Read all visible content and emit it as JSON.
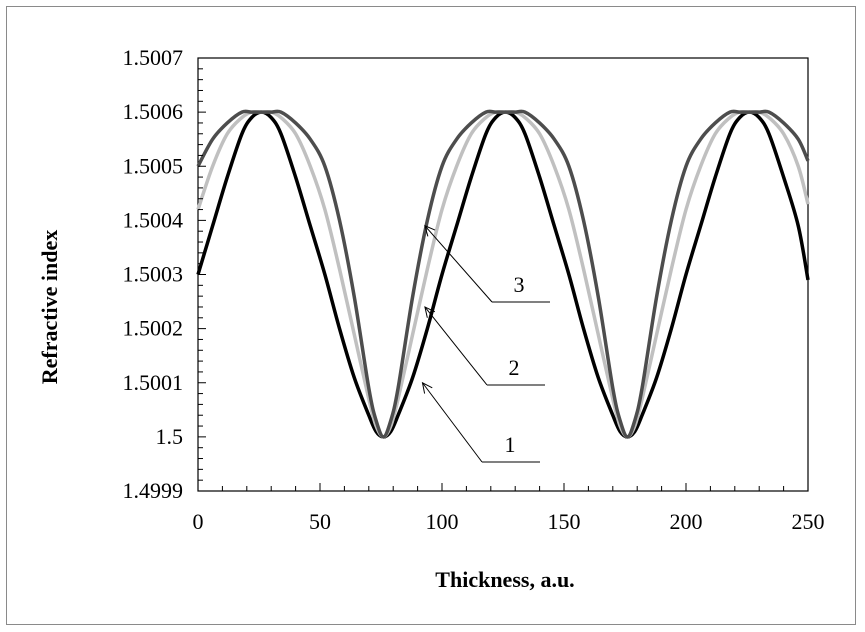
{
  "chart_data": {
    "type": "line",
    "title": "",
    "xlabel": "Thickness, a.u.",
    "ylabel": "Refractive index",
    "xlim": [
      0,
      250
    ],
    "ylim": [
      1.4999,
      1.5007
    ],
    "xticks": [
      0,
      50,
      100,
      150,
      200,
      250
    ],
    "xtick_labels": [
      "0",
      "50",
      "100",
      "150",
      "200",
      "250"
    ],
    "yticks": [
      1.4999,
      1.5,
      1.5001,
      1.5002,
      1.5003,
      1.5004,
      1.5005,
      1.5006,
      1.5007
    ],
    "ytick_labels": [
      "1.4999",
      "1.5",
      "1.5001",
      "1.5002",
      "1.5003",
      "1.5004",
      "1.5005",
      "1.5006",
      "1.5007"
    ],
    "grid": false,
    "legend": "none",
    "period": 100,
    "maximum_x": [
      26,
      126,
      226
    ],
    "minimum_x": [
      76,
      176
    ],
    "series": [
      {
        "label": "1",
        "color": "#000000",
        "x": [
          0,
          6,
          12,
          18,
          22,
          26,
          30,
          34,
          40,
          46,
          52,
          58,
          64,
          70,
          73,
          76,
          79,
          82,
          88,
          94,
          100,
          106,
          112,
          118,
          122,
          126,
          130,
          134,
          140,
          146,
          152,
          158,
          164,
          170,
          173,
          176,
          179,
          182,
          188,
          194,
          200,
          206,
          212,
          218,
          222,
          226,
          230,
          234,
          240,
          246,
          250
        ],
        "y": [
          1.5003,
          1.50039,
          1.50048,
          1.50056,
          1.50059,
          1.5006,
          1.50059,
          1.50056,
          1.50048,
          1.50039,
          1.5003,
          1.5002,
          1.50011,
          1.50004,
          1.50001,
          1.5,
          1.50001,
          1.50004,
          1.50011,
          1.5002,
          1.5003,
          1.50039,
          1.50048,
          1.50056,
          1.50059,
          1.5006,
          1.50059,
          1.50056,
          1.50048,
          1.50039,
          1.5003,
          1.5002,
          1.50011,
          1.50004,
          1.50001,
          1.5,
          1.50001,
          1.50004,
          1.50011,
          1.5002,
          1.5003,
          1.50039,
          1.50048,
          1.50056,
          1.50059,
          1.5006,
          1.50059,
          1.50056,
          1.50048,
          1.50039,
          1.50029
        ]
      },
      {
        "label": "2",
        "color": "#c0c0c0",
        "x": [
          0,
          6,
          12,
          18,
          22,
          26,
          30,
          34,
          40,
          46,
          52,
          58,
          64,
          70,
          73,
          76,
          79,
          82,
          88,
          94,
          100,
          106,
          112,
          118,
          122,
          126,
          130,
          134,
          140,
          146,
          152,
          158,
          164,
          170,
          173,
          176,
          179,
          182,
          188,
          194,
          200,
          206,
          212,
          218,
          222,
          226,
          230,
          234,
          240,
          246,
          250
        ],
        "y": [
          1.50042,
          1.5005,
          1.50056,
          1.50059,
          1.5006,
          1.5006,
          1.5006,
          1.50059,
          1.50056,
          1.5005,
          1.50042,
          1.50031,
          1.50019,
          1.50007,
          1.50002,
          1.5,
          1.50002,
          1.50007,
          1.50019,
          1.50031,
          1.50042,
          1.5005,
          1.50056,
          1.50059,
          1.5006,
          1.5006,
          1.5006,
          1.50059,
          1.50056,
          1.5005,
          1.50042,
          1.50031,
          1.50019,
          1.50007,
          1.50002,
          1.5,
          1.50002,
          1.50007,
          1.50019,
          1.50031,
          1.50042,
          1.5005,
          1.50056,
          1.50059,
          1.5006,
          1.5006,
          1.5006,
          1.50059,
          1.50056,
          1.5005,
          1.50043
        ]
      },
      {
        "label": "3",
        "color": "#4d4d4d",
        "x": [
          0,
          6,
          12,
          18,
          22,
          26,
          30,
          34,
          40,
          46,
          52,
          58,
          64,
          70,
          73,
          76,
          79,
          82,
          88,
          94,
          100,
          106,
          112,
          118,
          122,
          126,
          130,
          134,
          140,
          146,
          152,
          158,
          164,
          170,
          173,
          176,
          179,
          182,
          188,
          194,
          200,
          206,
          212,
          218,
          222,
          226,
          230,
          234,
          240,
          246,
          250
        ],
        "y": [
          1.5005,
          1.50055,
          1.50058,
          1.5006,
          1.5006,
          1.5006,
          1.5006,
          1.5006,
          1.50058,
          1.50055,
          1.5005,
          1.5004,
          1.50026,
          1.50009,
          1.50003,
          1.5,
          1.50003,
          1.50009,
          1.50026,
          1.5004,
          1.5005,
          1.50055,
          1.50058,
          1.5006,
          1.5006,
          1.5006,
          1.5006,
          1.5006,
          1.50058,
          1.50055,
          1.5005,
          1.5004,
          1.50026,
          1.50009,
          1.50003,
          1.5,
          1.50003,
          1.50009,
          1.50026,
          1.5004,
          1.5005,
          1.50055,
          1.50058,
          1.5006,
          1.5006,
          1.5006,
          1.5006,
          1.5006,
          1.50058,
          1.50055,
          1.50051
        ]
      }
    ],
    "annotations": [
      {
        "text": "1",
        "series": "1",
        "target": [
          92,
          1.5001
        ]
      },
      {
        "text": "2",
        "series": "2",
        "target": [
          93,
          1.50024
        ]
      },
      {
        "text": "3",
        "series": "3",
        "target": [
          93,
          1.50039
        ]
      }
    ]
  }
}
